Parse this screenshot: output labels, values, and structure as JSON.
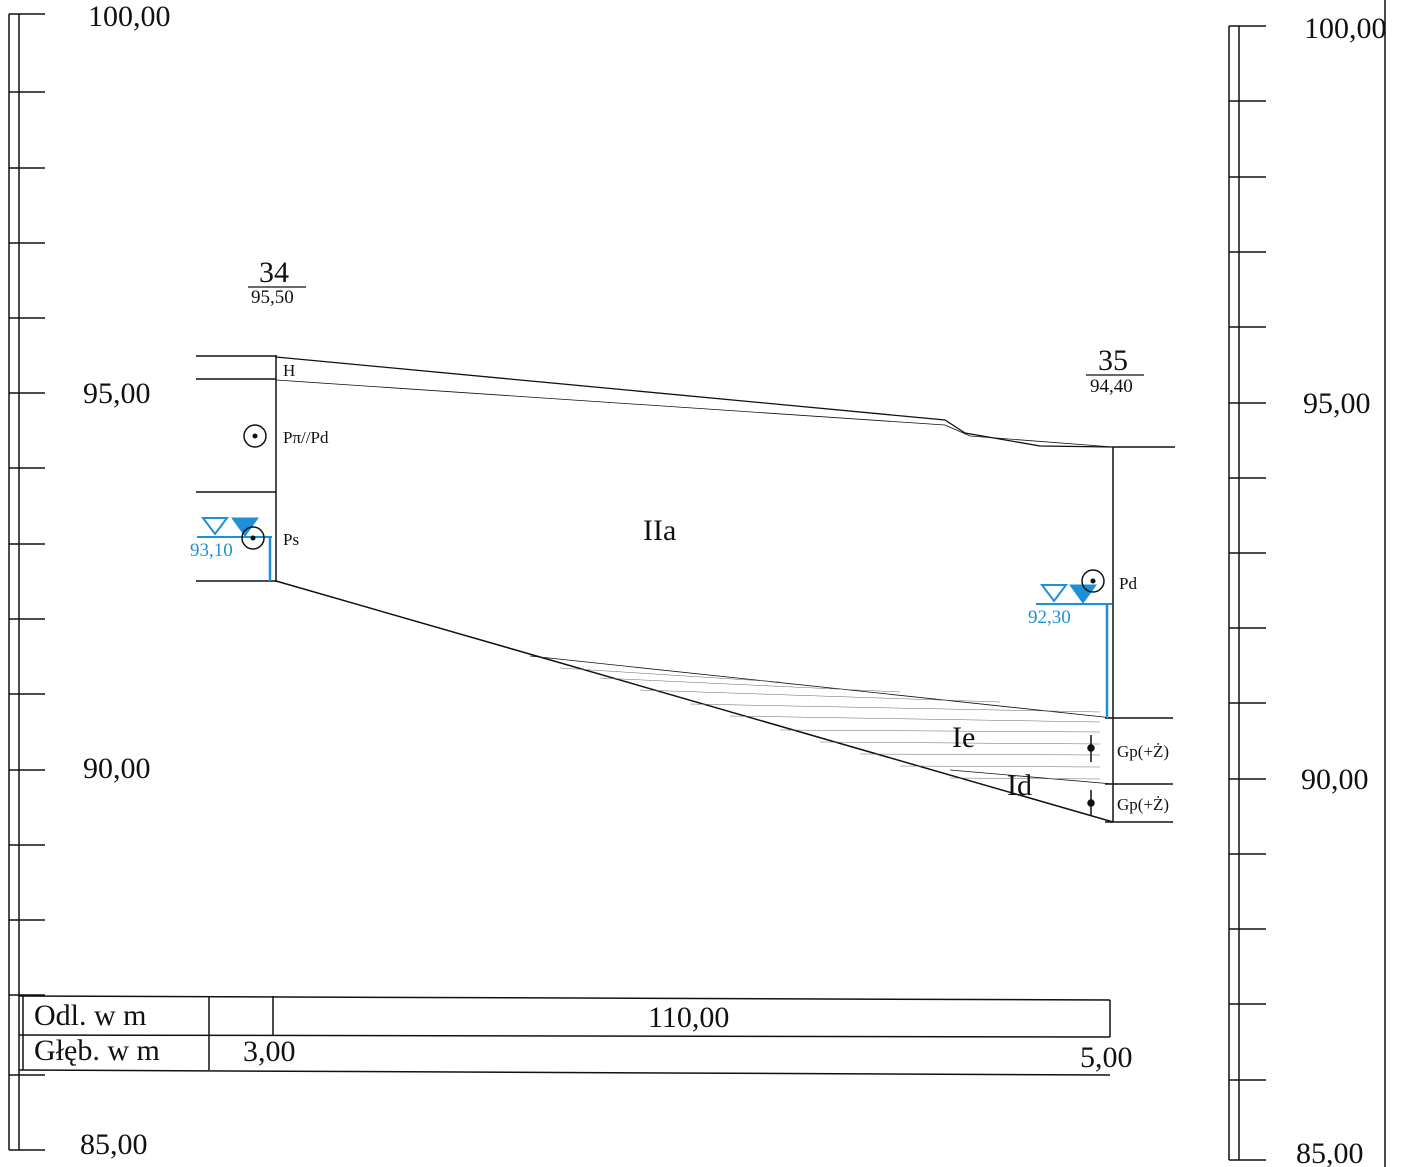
{
  "scale_left": {
    "labels": [
      "100,00",
      "95,00",
      "90,00",
      "85,00"
    ]
  },
  "scale_right": {
    "labels": [
      "100,00",
      "95,00",
      "90,00",
      "85,00"
    ]
  },
  "boreholes": [
    {
      "number": "34",
      "elevation": "95,50",
      "layers": [
        "H",
        "Pπ//Pd",
        "Ps"
      ],
      "water_level": "93,10",
      "depth": "3,00"
    },
    {
      "number": "35",
      "elevation": "94,40",
      "layers": [
        "Pd",
        "Gp(+Ż)",
        "Gp(+Ż)"
      ],
      "water_level": "92,30",
      "depth": "5,00"
    }
  ],
  "zones": [
    "IIa",
    "Ie",
    "Id"
  ],
  "table": {
    "row1_label": "Odl. w m",
    "distance": "110,00",
    "row2_label": "Głęb. w m"
  },
  "colors": {
    "water": "#1e90d6",
    "line": "#111111"
  }
}
